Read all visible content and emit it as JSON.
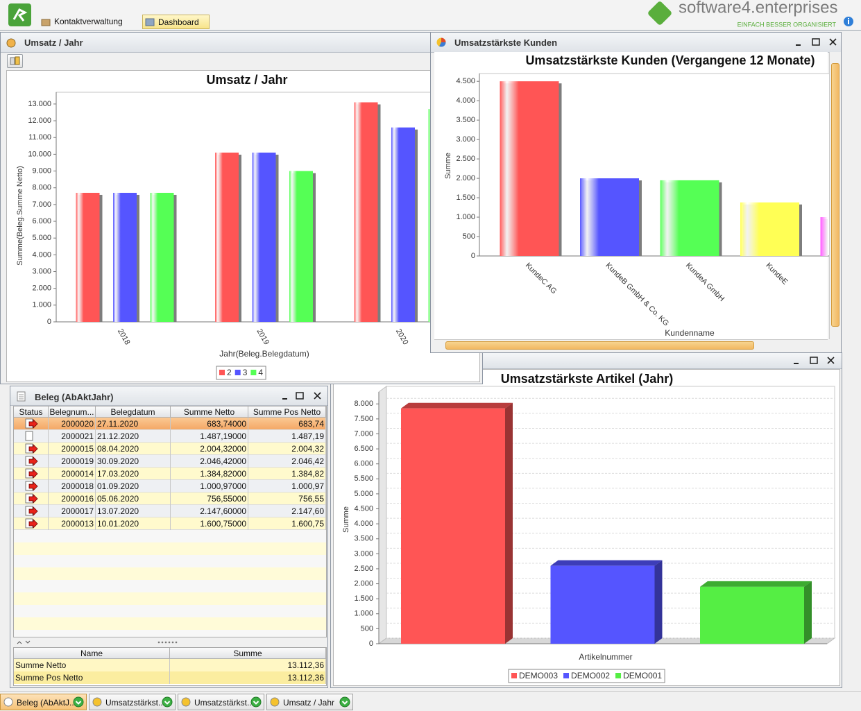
{
  "header": {
    "tabs": [
      "Kontaktverwaltung",
      "Dashboard"
    ],
    "brand": "software4.enterprises",
    "slogan": "EINFACH BESSER ORGANISIERT"
  },
  "windows": {
    "umsatz": "Umsatz / Jahr",
    "kunden": "Umsatzstärkste Kunden",
    "beleg": "Beleg (AbAktJahr)"
  },
  "chart_data": [
    {
      "type": "bar",
      "title": "Umsatz / Jahr",
      "x_label": "Jahr(Beleg.Belegdatum)",
      "y_label": "Summe(Beleg.Summe Netto)",
      "categories": [
        "2018",
        "2019",
        "2020"
      ],
      "series": [
        {
          "name": "2",
          "color": "#ff5555",
          "values": [
            7700,
            10100,
            13100
          ]
        },
        {
          "name": "3",
          "color": "#5555ff",
          "values": [
            7700,
            10100,
            11600
          ]
        },
        {
          "name": "4",
          "color": "#55ff55",
          "values": [
            7700,
            9000,
            12700
          ]
        }
      ],
      "ylim": [
        0,
        13700
      ],
      "yticks": [
        0,
        {
          "value": 1000,
          "label": "1.000"
        },
        {
          "value": 2000,
          "label": "2.000"
        },
        {
          "value": 3000,
          "label": "3.000"
        },
        {
          "value": 4000,
          "label": "4.000"
        },
        {
          "value": 5000,
          "label": "5.000"
        },
        {
          "value": 6000,
          "label": "6.000"
        },
        {
          "value": 7000,
          "label": "7.000"
        },
        {
          "value": 8000,
          "label": "8.000"
        },
        {
          "value": 9000,
          "label": "9.000"
        },
        {
          "value": 10000,
          "label": "10.000"
        },
        {
          "value": 11000,
          "label": "11.000"
        },
        {
          "value": 12000,
          "label": "12.000"
        },
        {
          "value": 13000,
          "label": "13.000"
        }
      ],
      "grid": false,
      "legend": "bottom"
    },
    {
      "type": "bar",
      "title": "Umsatzstärkste Kunden (Vergangene 12 Monate)",
      "x_label": "Kundenname",
      "y_label": "Summe",
      "categories": [
        "KundeC AG",
        "KundeB GmbH & Co. KG",
        "KundeA GmbH",
        "KundeE",
        null
      ],
      "values": [
        4500,
        2000,
        1950,
        1380,
        1000
      ],
      "colors": [
        "#ff5555",
        "#5555ff",
        "#55ff55",
        "#ffff55",
        "#ff55ff"
      ],
      "ylim": [
        0,
        4700
      ],
      "yticks": [
        0,
        500,
        {
          "value": 1000,
          "label": "1.000"
        },
        {
          "value": 1500,
          "label": "1.500"
        },
        {
          "value": 2000,
          "label": "2.000"
        },
        {
          "value": 2500,
          "label": "2.500"
        },
        {
          "value": 3000,
          "label": "3.000"
        },
        {
          "value": 3500,
          "label": "3.500"
        },
        {
          "value": 4000,
          "label": "4.000"
        },
        {
          "value": 4500,
          "label": "4.500"
        }
      ],
      "grid": false
    },
    {
      "type": "bar3d",
      "title": "Umsatzstärkste Artikel (Jahr)",
      "x_label": "Artikelnummer",
      "y_label": "Summe",
      "series": [
        {
          "name": "DEMO003",
          "color": "#ff5555",
          "values": [
            7850
          ]
        },
        {
          "name": "DEMO002",
          "color": "#5555ff",
          "values": [
            2600
          ]
        },
        {
          "name": "DEMO001",
          "color": "#55ee44",
          "values": [
            1900
          ]
        }
      ],
      "ylim": [
        0,
        8400
      ],
      "yticks": [
        0,
        500,
        {
          "value": 1000,
          "label": "1.000"
        },
        {
          "value": 1500,
          "label": "1.500"
        },
        {
          "value": 2000,
          "label": "2.000"
        },
        {
          "value": 2500,
          "label": "2.500"
        },
        {
          "value": 3000,
          "label": "3.000"
        },
        {
          "value": 3500,
          "label": "3.500"
        },
        {
          "value": 4000,
          "label": "4.000"
        },
        {
          "value": 4500,
          "label": "4.500"
        },
        {
          "value": 5000,
          "label": "5.000"
        },
        {
          "value": 5500,
          "label": "5.500"
        },
        {
          "value": 6000,
          "label": "6.000"
        },
        {
          "value": 6500,
          "label": "6.500"
        },
        {
          "value": 7000,
          "label": "7.000"
        },
        {
          "value": 7500,
          "label": "7.500"
        },
        {
          "value": 8000,
          "label": "8.000"
        }
      ],
      "grid": true,
      "legend": "bottom"
    }
  ],
  "table": {
    "columns": [
      "Status",
      "Belegnum...",
      "Belegdatum",
      "Summe Netto",
      "Summe Pos Netto"
    ],
    "rows": [
      [
        "2000020",
        "27.11.2020",
        "683,74000",
        "683,74"
      ],
      [
        "2000021",
        "21.12.2020",
        "1.487,19000",
        "1.487,19"
      ],
      [
        "2000015",
        "08.04.2020",
        "2.004,32000",
        "2.004,32"
      ],
      [
        "2000019",
        "30.09.2020",
        "2.046,42000",
        "2.046,42"
      ],
      [
        "2000014",
        "17.03.2020",
        "1.384,82000",
        "1.384,82"
      ],
      [
        "2000018",
        "01.09.2020",
        "1.000,97000",
        "1.000,97"
      ],
      [
        "2000016",
        "05.06.2020",
        "756,55000",
        "756,55"
      ],
      [
        "2000017",
        "13.07.2020",
        "2.147,60000",
        "2.147,60"
      ],
      [
        "2000013",
        "10.01.2020",
        "1.600,75000",
        "1.600,75"
      ]
    ]
  },
  "summary": {
    "columns": [
      "Name",
      "Summe"
    ],
    "rows": [
      [
        "Summe Netto",
        "13.112,36"
      ],
      [
        "Summe Pos Netto",
        "13.112,36"
      ]
    ]
  },
  "taskbar": [
    "Beleg (AbAktJ...",
    "Umsatzstärkst...",
    "Umsatzstärkst...",
    "Umsatz / Jahr"
  ]
}
